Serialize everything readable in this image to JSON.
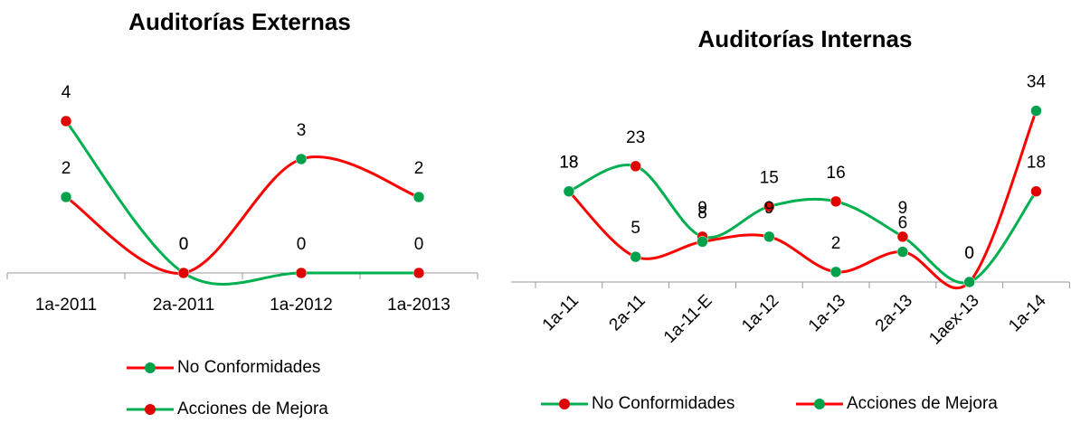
{
  "chart_data": [
    {
      "type": "line",
      "title": "Auditorías Externas",
      "smooth": true,
      "legend": "bottom",
      "categories": [
        "1a-2011",
        "2a-2011",
        "1a-2012",
        "1a-2013"
      ],
      "series": [
        {
          "name": "No Conformidades",
          "color": "#ff0000",
          "marker_color": "#00a14b",
          "values": [
            2,
            0,
            3,
            2
          ]
        },
        {
          "name": "Acciones de Mejora",
          "color": "#00b050",
          "marker_color": "#e00000",
          "values": [
            4,
            0,
            0,
            0
          ]
        }
      ],
      "ylim": [
        0,
        5
      ]
    },
    {
      "type": "line",
      "title": "Auditorías Internas",
      "smooth": true,
      "legend": "bottom",
      "xtick_rotation": -45,
      "categories": [
        "1a-11",
        "2a-11",
        "1a-11-E",
        "1a-12",
        "1a-13",
        "2a-13",
        "1aex-13",
        "1a-14"
      ],
      "series": [
        {
          "name": "No Conformidades",
          "color": "#00b050",
          "marker_color": "#e00000",
          "values": [
            18,
            23,
            9,
            15,
            16,
            9,
            0,
            18
          ]
        },
        {
          "name": "Acciones de Mejora",
          "color": "#ff0000",
          "marker_color": "#00a14b",
          "values": [
            18,
            5,
            8,
            9,
            2,
            6,
            0,
            34
          ]
        }
      ],
      "ylim": [
        0,
        35
      ]
    }
  ]
}
